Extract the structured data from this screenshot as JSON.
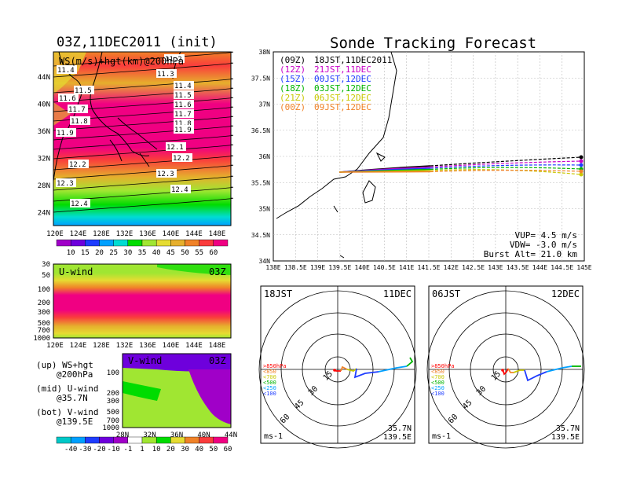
{
  "init_title": "03Z,11DEC2011 (init)",
  "track_title": "Sonde Tracking Forecast",
  "ws_panel": {
    "label": "WS(m/s)+hgt(km)@200hPa",
    "lon_ticks": [
      "120E",
      "124E",
      "128E",
      "132E",
      "136E",
      "140E",
      "144E",
      "148E"
    ],
    "lat_ticks": [
      "44N",
      "40N",
      "36N",
      "32N",
      "28N",
      "24N"
    ],
    "contour_labels": [
      "11.2",
      "11.3",
      "11.4",
      "11.4",
      "11.5",
      "11.5",
      "11.6",
      "11.6",
      "11.7",
      "11.7",
      "11.8",
      "11.8",
      "11.9",
      "11.9",
      "12.1",
      "12.2",
      "12.2",
      "12.3",
      "12.3",
      "12.4",
      "12.4"
    ]
  },
  "ws_colorbar": {
    "labels": [
      "10",
      "15",
      "20",
      "25",
      "30",
      "35",
      "40",
      "45",
      "50",
      "55",
      "60"
    ],
    "colors": [
      "#a000c8",
      "#6e00dc",
      "#1e3cff",
      "#00a0ff",
      "#00dcd2",
      "#00dc00",
      "#a0e632",
      "#e6dc32",
      "#e6af2d",
      "#f08228",
      "#fa3c3c",
      "#f00082"
    ]
  },
  "u_panel": {
    "label": "U-wind",
    "time": "03Z",
    "p_ticks": [
      "30",
      "50",
      "100",
      "200",
      "300",
      "500",
      "700",
      "1000"
    ],
    "lon_ticks": [
      "120E",
      "124E",
      "128E",
      "132E",
      "136E",
      "140E",
      "144E",
      "148E"
    ]
  },
  "v_panel": {
    "label": "V-wind",
    "time": "03Z",
    "p_ticks": [
      "100",
      "200",
      "300",
      "500",
      "700",
      "1000"
    ],
    "lat_ticks": [
      "28N",
      "32N",
      "36N",
      "40N",
      "44N"
    ]
  },
  "legend_notes": [
    {
      "a": "(up) WS+hgt",
      "b": "@200hPa"
    },
    {
      "a": "(mid) U-wind",
      "b": "@35.7N"
    },
    {
      "a": "(bot) V-wind",
      "b": "@139.5E"
    }
  ],
  "uv_colorbar": {
    "labels": [
      "-40",
      "-30",
      "-20",
      "-10",
      "-1",
      "1",
      "10",
      "20",
      "30",
      "40",
      "50",
      "60"
    ],
    "colors": [
      "#00c8c8",
      "#00a0ff",
      "#1e3cff",
      "#6e00dc",
      "#a000c8",
      "#ffffff",
      "#a0e632",
      "#00dc00",
      "#e6dc32",
      "#f08228",
      "#fa3c3c",
      "#f00082"
    ]
  },
  "track_map": {
    "lat_ticks": [
      "38N",
      "37.5N",
      "37N",
      "36.5N",
      "36N",
      "35.5N",
      "35N",
      "34.5N",
      "34N"
    ],
    "lon_ticks": [
      "138E",
      "138.5E",
      "139E",
      "139.5E",
      "140E",
      "140.5E",
      "141E",
      "141.5E",
      "142E",
      "142.5E",
      "143E",
      "143.5E",
      "144E",
      "144.5E",
      "145E"
    ],
    "launches": [
      {
        "z": "(09Z)",
        "jst": "18JST,11DEC2011",
        "color": "#000000"
      },
      {
        "z": "(12Z)",
        "jst": "21JST,11DEC",
        "color": "#c800c8"
      },
      {
        "z": "(15Z)",
        "jst": "00JST,12DEC",
        "color": "#1e3cff"
      },
      {
        "z": "(18Z)",
        "jst": "03JST,12DEC",
        "color": "#00b400"
      },
      {
        "z": "(21Z)",
        "jst": "06JST,12DEC",
        "color": "#c8c800"
      },
      {
        "z": "(00Z)",
        "jst": "09JST,12DEC",
        "color": "#f08228"
      }
    ],
    "vup": "VUP= 4.5 m/s",
    "vdw": "VDW= -3.0 m/s",
    "burst": "Burst Alt= 21.0 km"
  },
  "polar_left": {
    "title_left": "18JST",
    "title_right": "11DEC",
    "rings": [
      "15",
      "30",
      "45",
      "60"
    ],
    "levels": [
      ">850hPa",
      "<850",
      "<700",
      "<500",
      "<250",
      "<100"
    ],
    "unit": "ms-1",
    "lat": "35.7N",
    "lon": "139.5E"
  },
  "polar_right": {
    "title_left": "06JST",
    "title_right": "12DEC",
    "rings": [
      "15",
      "30",
      "45",
      "60"
    ],
    "levels": [
      ">850hPa",
      "<850",
      "<700",
      "<500",
      "<250",
      "<100"
    ],
    "unit": "ms-1",
    "lat": "35.7N",
    "lon": "139.5E"
  },
  "level_colors": [
    "#ff0000",
    "#f08228",
    "#c8c800",
    "#00b400",
    "#00a0ff",
    "#1e3cff"
  ]
}
